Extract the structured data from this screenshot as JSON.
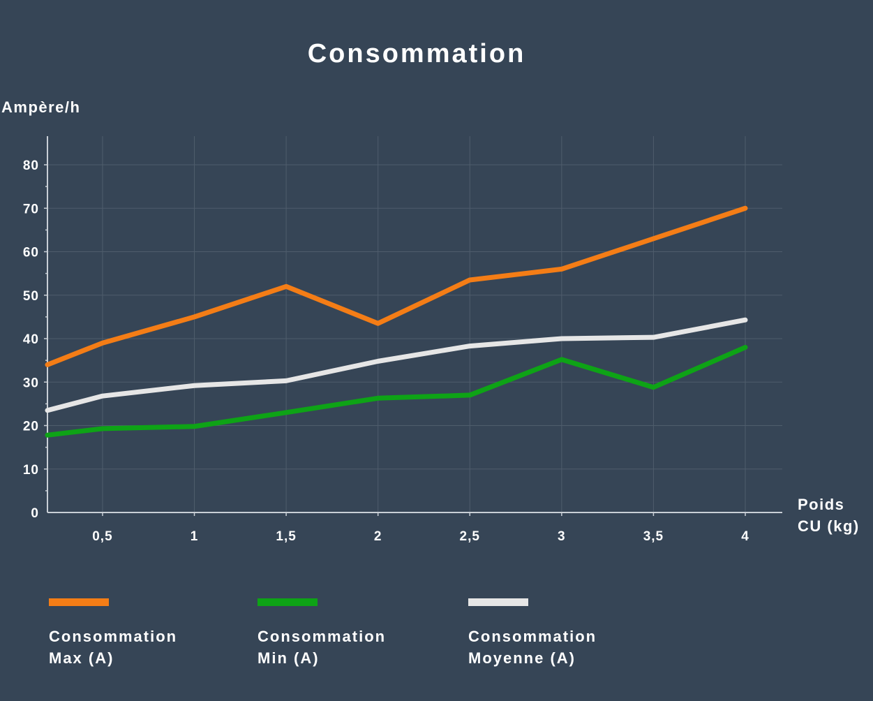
{
  "chart_data": {
    "type": "line",
    "title": "Consommation",
    "ylabel": "Ampère/h",
    "xlabel": "Poids\nCU (kg)",
    "x": [
      0.2,
      0.5,
      1,
      1.5,
      2,
      2.5,
      3,
      3.5,
      4
    ],
    "xlim": [
      0.2,
      4.2
    ],
    "ylim": [
      0,
      86
    ],
    "xticks": [
      0.5,
      1,
      1.5,
      2,
      2.5,
      3,
      3.5,
      4
    ],
    "xtick_labels": [
      "0,5",
      "1",
      "1,5",
      "2",
      "2,5",
      "3",
      "3,5",
      "4"
    ],
    "yticks": [
      0,
      10,
      20,
      30,
      40,
      50,
      60,
      70,
      80
    ],
    "ytick_labels": [
      "0",
      "10",
      "20",
      "30",
      "40",
      "50",
      "60",
      "70",
      "80"
    ],
    "grid": true,
    "legend_position": "bottom",
    "series": [
      {
        "name": "Consommation\nMax (A)",
        "color": "#f47d16",
        "values": [
          34,
          39,
          45,
          52,
          43.5,
          53.5,
          56,
          63,
          70
        ]
      },
      {
        "name": "Consommation\nMin (A)",
        "color": "#0ea316",
        "values": [
          17.8,
          19.3,
          19.8,
          23,
          26.3,
          27,
          35.2,
          28.8,
          38
        ]
      },
      {
        "name": "Consommation\nMoyenne (A)",
        "color": "#e6e6e6",
        "values": [
          23.5,
          26.8,
          29.2,
          30.3,
          34.8,
          38.3,
          40,
          40.3,
          44.3
        ]
      }
    ]
  }
}
